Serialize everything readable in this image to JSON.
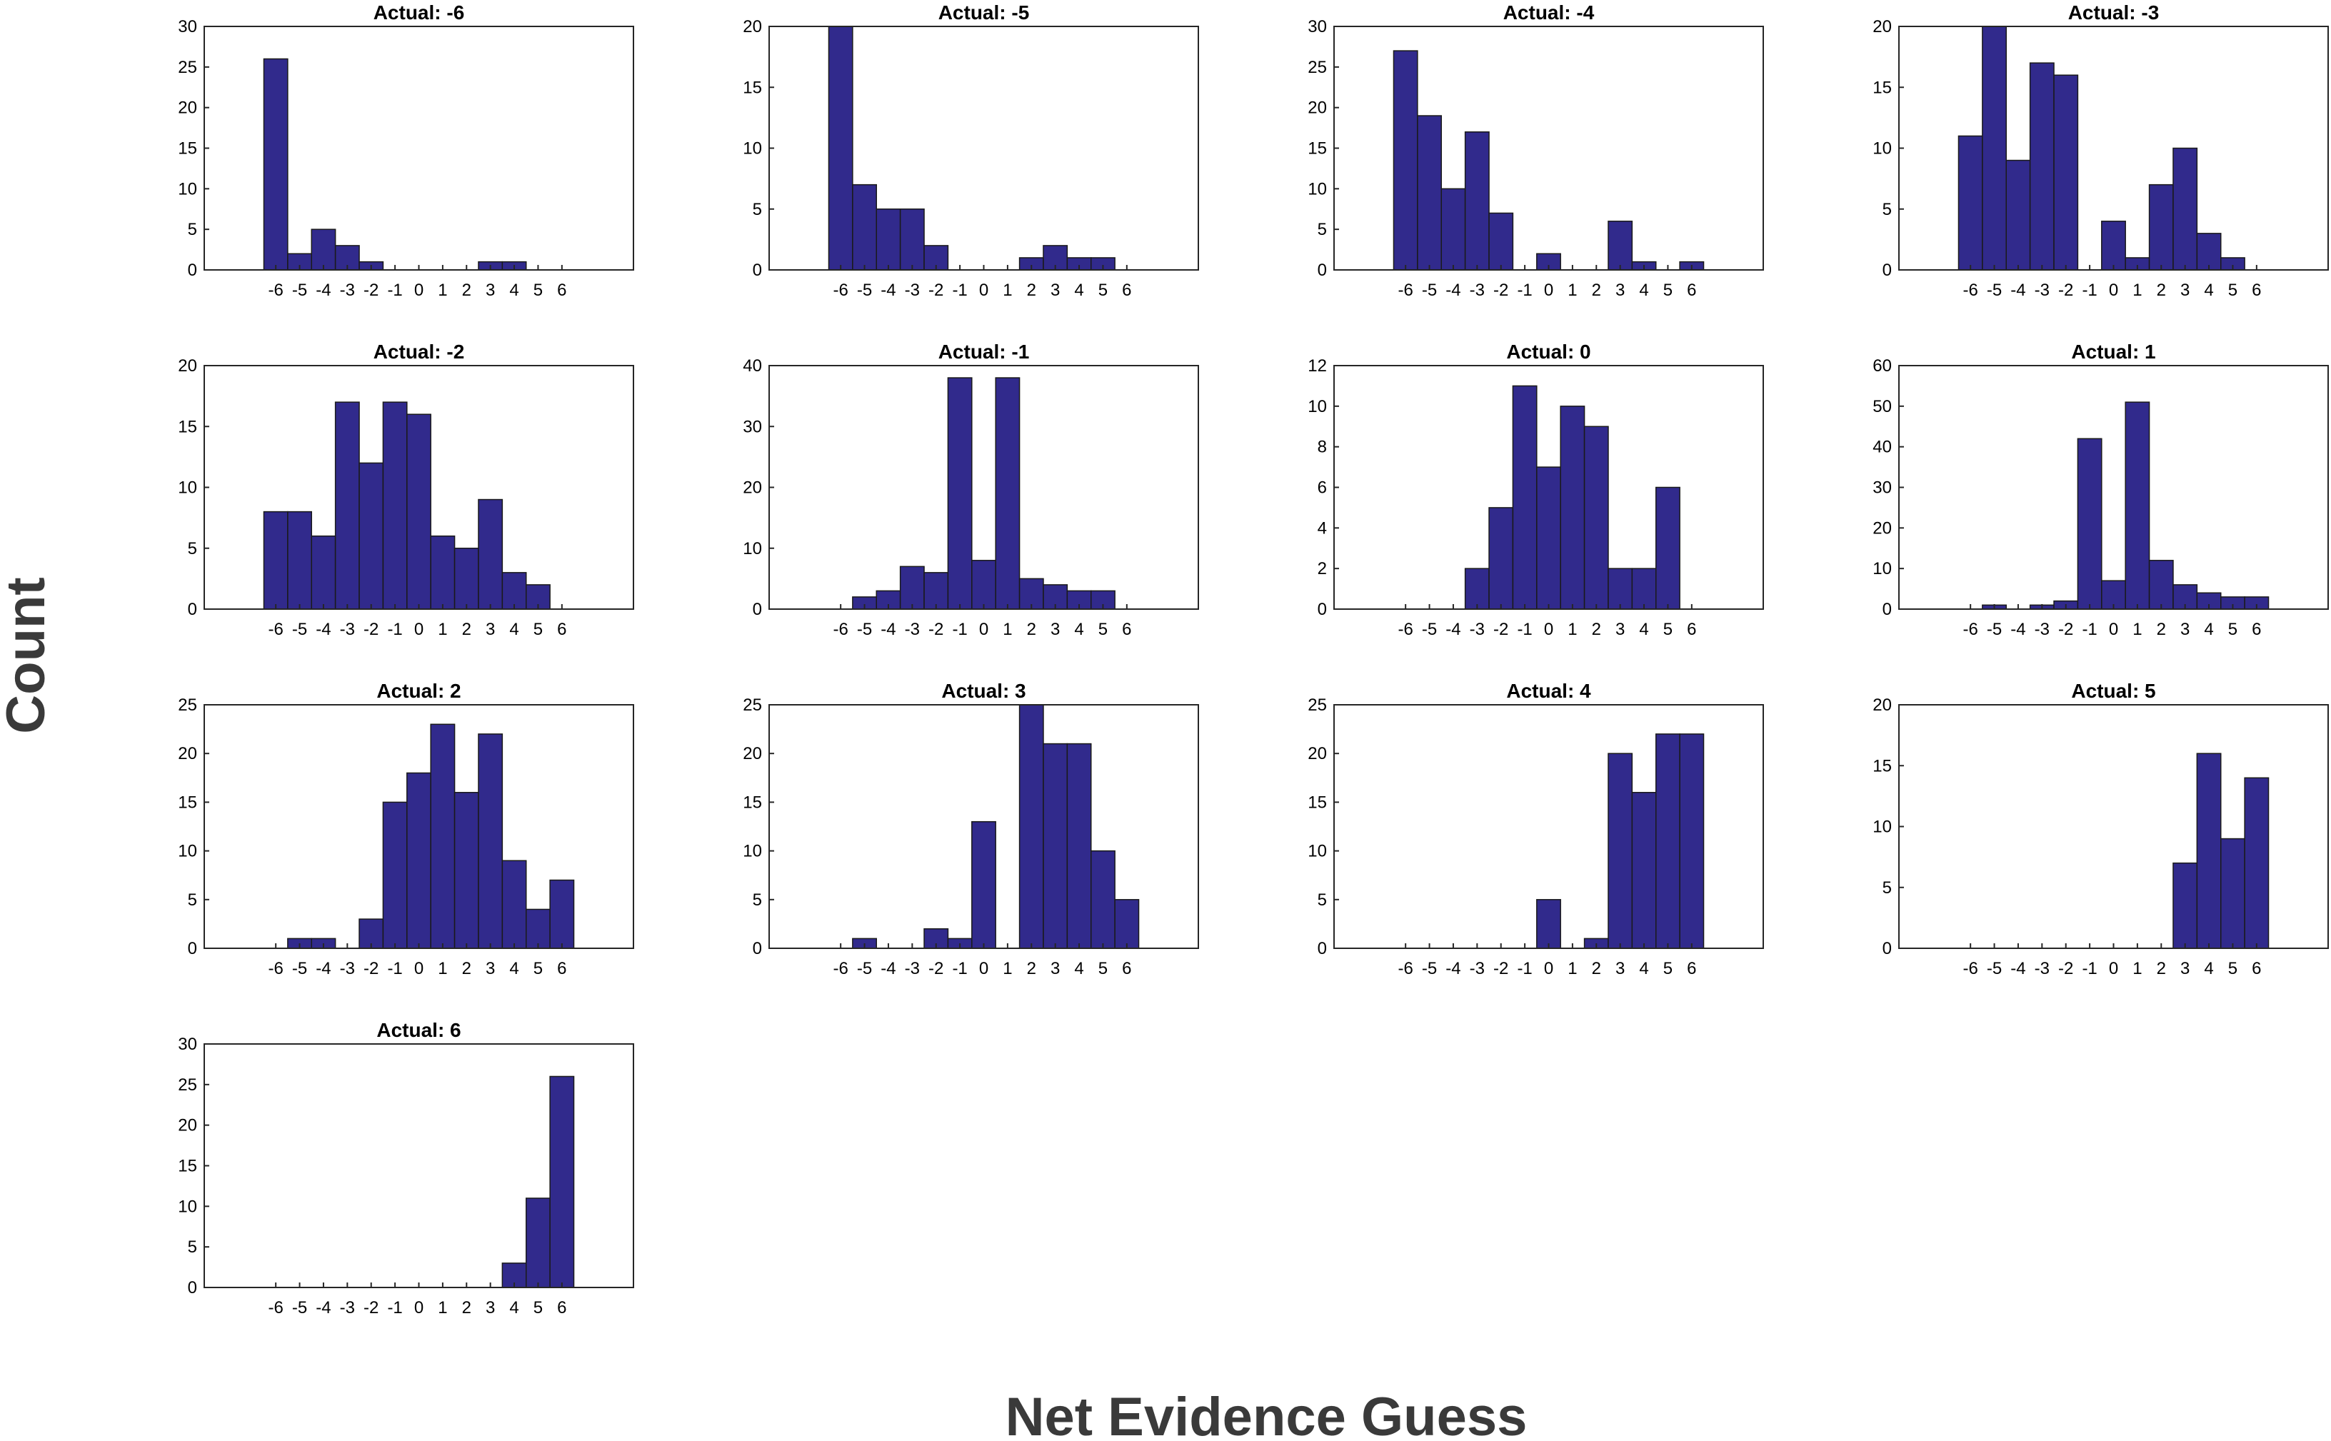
{
  "figure": {
    "ylabel": "Count",
    "xlabel": "Net Evidence Guess"
  },
  "colors": {
    "bar_fill": "#312a8c",
    "bar_edge": "#1a1a1a",
    "axes": "#262626"
  },
  "chart_data": [
    {
      "type": "bar",
      "title": "Actual: -6",
      "x": [
        -6,
        -5,
        -4,
        -3,
        -2,
        -1,
        0,
        1,
        2,
        3,
        4,
        5,
        6
      ],
      "values": [
        26,
        2,
        5,
        3,
        1,
        0,
        0,
        0,
        0,
        1,
        1,
        0,
        0
      ],
      "ylim": [
        0,
        30
      ],
      "yticks": [
        0,
        5,
        10,
        15,
        20,
        25,
        30
      ],
      "xlim": [
        -9,
        9
      ]
    },
    {
      "type": "bar",
      "title": "Actual: -5",
      "x": [
        -6,
        -5,
        -4,
        -3,
        -2,
        -1,
        0,
        1,
        2,
        3,
        4,
        5,
        6
      ],
      "values": [
        20,
        7,
        5,
        5,
        2,
        0,
        0,
        0,
        1,
        2,
        1,
        1,
        0
      ],
      "ylim": [
        0,
        20
      ],
      "yticks": [
        0,
        5,
        10,
        15,
        20
      ],
      "xlim": [
        -9,
        9
      ]
    },
    {
      "type": "bar",
      "title": "Actual: -4",
      "x": [
        -6,
        -5,
        -4,
        -3,
        -2,
        -1,
        0,
        1,
        2,
        3,
        4,
        5,
        6
      ],
      "values": [
        27,
        19,
        10,
        17,
        7,
        0,
        2,
        0,
        0,
        6,
        1,
        0,
        1
      ],
      "ylim": [
        0,
        30
      ],
      "yticks": [
        0,
        5,
        10,
        15,
        20,
        25,
        30
      ],
      "xlim": [
        -9,
        9
      ]
    },
    {
      "type": "bar",
      "title": "Actual: -3",
      "x": [
        -6,
        -5,
        -4,
        -3,
        -2,
        -1,
        0,
        1,
        2,
        3,
        4,
        5,
        6
      ],
      "values": [
        11,
        20,
        9,
        17,
        16,
        0,
        4,
        1,
        7,
        10,
        3,
        1,
        0
      ],
      "ylim": [
        0,
        20
      ],
      "yticks": [
        0,
        5,
        10,
        15,
        20
      ],
      "xlim": [
        -9,
        9
      ]
    },
    {
      "type": "bar",
      "title": "Actual: -2",
      "x": [
        -6,
        -5,
        -4,
        -3,
        -2,
        -1,
        0,
        1,
        2,
        3,
        4,
        5,
        6
      ],
      "values": [
        8,
        8,
        6,
        17,
        12,
        17,
        16,
        6,
        5,
        9,
        3,
        2,
        0
      ],
      "ylim": [
        0,
        20
      ],
      "yticks": [
        0,
        5,
        10,
        15,
        20
      ],
      "xlim": [
        -9,
        9
      ]
    },
    {
      "type": "bar",
      "title": "Actual: -1",
      "x": [
        -6,
        -5,
        -4,
        -3,
        -2,
        -1,
        0,
        1,
        2,
        3,
        4,
        5,
        6
      ],
      "values": [
        0,
        2,
        3,
        7,
        6,
        38,
        8,
        38,
        5,
        4,
        3,
        3,
        0
      ],
      "ylim": [
        0,
        40
      ],
      "yticks": [
        0,
        10,
        20,
        30,
        40
      ],
      "xlim": [
        -9,
        9
      ]
    },
    {
      "type": "bar",
      "title": "Actual: 0",
      "x": [
        -6,
        -5,
        -4,
        -3,
        -2,
        -1,
        0,
        1,
        2,
        3,
        4,
        5,
        6
      ],
      "values": [
        0,
        0,
        0,
        2,
        5,
        11,
        7,
        10,
        9,
        2,
        2,
        6,
        0
      ],
      "ylim": [
        0,
        12
      ],
      "yticks": [
        0,
        2,
        4,
        6,
        8,
        10,
        12
      ],
      "xlim": [
        -9,
        9
      ]
    },
    {
      "type": "bar",
      "title": "Actual: 1",
      "x": [
        -6,
        -5,
        -4,
        -3,
        -2,
        -1,
        0,
        1,
        2,
        3,
        4,
        5,
        6
      ],
      "values": [
        0,
        1,
        0,
        1,
        2,
        42,
        7,
        51,
        12,
        6,
        4,
        3,
        3
      ],
      "ylim": [
        0,
        60
      ],
      "yticks": [
        0,
        10,
        20,
        30,
        40,
        50,
        60
      ],
      "xlim": [
        -9,
        9
      ]
    },
    {
      "type": "bar",
      "title": "Actual: 2",
      "x": [
        -6,
        -5,
        -4,
        -3,
        -2,
        -1,
        0,
        1,
        2,
        3,
        4,
        5,
        6
      ],
      "values": [
        0,
        1,
        1,
        0,
        3,
        15,
        18,
        23,
        16,
        22,
        9,
        4,
        7
      ],
      "ylim": [
        0,
        25
      ],
      "yticks": [
        0,
        5,
        10,
        15,
        20,
        25
      ],
      "xlim": [
        -9,
        9
      ]
    },
    {
      "type": "bar",
      "title": "Actual: 3",
      "x": [
        -6,
        -5,
        -4,
        -3,
        -2,
        -1,
        0,
        1,
        2,
        3,
        4,
        5,
        6
      ],
      "values": [
        0,
        1,
        0,
        0,
        2,
        1,
        13,
        0,
        25,
        21,
        21,
        10,
        5
      ],
      "ylim": [
        0,
        25
      ],
      "yticks": [
        0,
        5,
        10,
        15,
        20,
        25
      ],
      "xlim": [
        -9,
        9
      ]
    },
    {
      "type": "bar",
      "title": "Actual: 4",
      "x": [
        -6,
        -5,
        -4,
        -3,
        -2,
        -1,
        0,
        1,
        2,
        3,
        4,
        5,
        6
      ],
      "values": [
        0,
        0,
        0,
        0,
        0,
        0,
        5,
        0,
        1,
        20,
        16,
        22,
        22
      ],
      "ylim": [
        0,
        25
      ],
      "yticks": [
        0,
        5,
        10,
        15,
        20,
        25
      ],
      "xlim": [
        -9,
        9
      ]
    },
    {
      "type": "bar",
      "title": "Actual: 5",
      "x": [
        -6,
        -5,
        -4,
        -3,
        -2,
        -1,
        0,
        1,
        2,
        3,
        4,
        5,
        6
      ],
      "values": [
        0,
        0,
        0,
        0,
        0,
        0,
        0,
        0,
        0,
        7,
        16,
        9,
        14
      ],
      "ylim": [
        0,
        20
      ],
      "yticks": [
        0,
        5,
        10,
        15,
        20
      ],
      "xlim": [
        -9,
        9
      ]
    },
    {
      "type": "bar",
      "title": "Actual: 6",
      "x": [
        -6,
        -5,
        -4,
        -3,
        -2,
        -1,
        0,
        1,
        2,
        3,
        4,
        5,
        6
      ],
      "values": [
        0,
        0,
        0,
        0,
        0,
        0,
        0,
        0,
        0,
        0,
        3,
        11,
        26
      ],
      "ylim": [
        0,
        30
      ],
      "yticks": [
        0,
        5,
        10,
        15,
        20,
        25,
        30
      ],
      "xlim": [
        -9,
        9
      ]
    }
  ]
}
